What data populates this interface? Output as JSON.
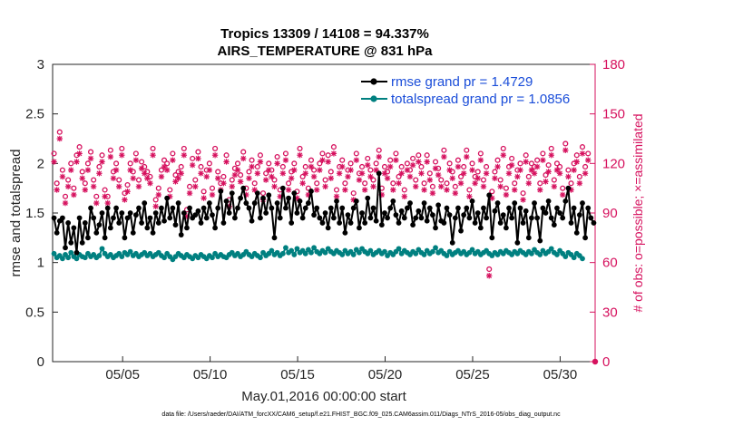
{
  "chart_data": {
    "type": "line",
    "title": "Tropics 13309 / 14108 = 94.337%",
    "subtitle": "AIRS_TEMPERATURE @ 831 hPa",
    "xlabel": "May.01,2016 00:00:00 start",
    "ylabel": "rmse and totalspread",
    "ylabel_right": "# of obs: o=possible; ×=assimilated",
    "x_ticks": [
      {
        "day": 5,
        "label": "05/05"
      },
      {
        "day": 10,
        "label": "05/10"
      },
      {
        "day": 15,
        "label": "05/15"
      },
      {
        "day": 20,
        "label": "05/20"
      },
      {
        "day": 25,
        "label": "05/25"
      },
      {
        "day": 30,
        "label": "05/30"
      }
    ],
    "xlim": [
      1,
      32
    ],
    "ylim": [
      0,
      3
    ],
    "y_ticks": [
      "0",
      "0.5",
      "1",
      "1.5",
      "2",
      "2.5",
      "3"
    ],
    "ylim_right": [
      0,
      180
    ],
    "y_ticks_right": [
      "0",
      "30",
      "60",
      "90",
      "120",
      "150",
      "180"
    ],
    "legend_position": "top-right",
    "colors": {
      "rmse": "#000000",
      "totalspread": "#008080",
      "obs": "#d6115e",
      "axis": "#262626",
      "legend_text": "#1a4dd9"
    },
    "series": [
      {
        "name": "rmse grand pr = 1.4729",
        "axis": "left",
        "values": [
          1.45,
          1.3,
          1.42,
          1.45,
          1.15,
          1.4,
          1.2,
          1.35,
          1.1,
          1.45,
          1.2,
          1.4,
          1.25,
          1.55,
          1.45,
          1.3,
          1.38,
          1.5,
          1.25,
          1.55,
          1.35,
          1.45,
          1.55,
          1.4,
          1.5,
          1.25,
          1.45,
          1.5,
          1.3,
          1.48,
          1.55,
          1.4,
          1.6,
          1.35,
          1.45,
          1.3,
          1.5,
          1.4,
          1.55,
          1.42,
          1.65,
          1.45,
          1.55,
          1.38,
          1.6,
          1.28,
          1.5,
          1.35,
          1.55,
          1.45,
          1.48,
          1.52,
          1.4,
          1.55,
          1.45,
          1.6,
          1.48,
          1.35,
          1.55,
          1.72,
          1.4,
          1.62,
          1.5,
          1.7,
          1.45,
          1.55,
          1.65,
          1.75,
          1.6,
          1.55,
          1.42,
          1.6,
          1.7,
          1.45,
          1.65,
          1.5,
          1.68,
          1.55,
          1.25,
          1.6,
          1.45,
          1.75,
          1.55,
          1.65,
          1.4,
          1.7,
          1.5,
          1.62,
          1.45,
          1.55,
          1.6,
          1.72,
          1.48,
          1.55,
          1.45,
          1.4,
          1.5,
          1.35,
          1.55,
          1.45,
          1.62,
          1.4,
          1.55,
          1.3,
          1.48,
          1.4,
          1.55,
          1.62,
          1.35,
          1.5,
          1.4,
          1.65,
          1.45,
          1.55,
          1.42,
          1.9,
          1.38,
          1.5,
          1.45,
          1.55,
          1.62,
          1.48,
          1.4,
          1.52,
          1.45,
          1.55,
          1.6,
          1.38,
          1.45,
          1.52,
          1.45,
          1.6,
          1.42,
          1.55,
          1.48,
          1.35,
          1.58,
          1.42,
          1.4,
          1.55,
          1.48,
          1.2,
          1.45,
          1.55,
          1.32,
          1.48,
          1.55,
          1.45,
          1.62,
          1.4,
          1.5,
          1.35,
          1.55,
          1.45,
          1.68,
          1.25,
          1.52,
          1.6,
          1.4,
          1.48,
          1.35,
          1.55,
          1.45,
          1.6,
          1.2,
          1.55,
          1.4,
          1.52,
          1.25,
          1.45,
          1.6,
          1.45,
          1.22,
          1.55,
          1.5,
          1.62,
          1.45,
          1.38,
          1.55,
          1.5,
          1.45,
          1.62,
          1.75,
          1.4,
          1.55,
          1.3,
          1.48,
          1.6,
          1.25,
          1.55,
          1.45,
          1.4
        ]
      },
      {
        "name": "totalspread grand pr = 1.0856",
        "axis": "left",
        "values": [
          1.09,
          1.05,
          1.07,
          1.04,
          1.08,
          1.05,
          1.1,
          1.06,
          1.04,
          1.08,
          1.06,
          1.05,
          1.09,
          1.06,
          1.08,
          1.05,
          1.07,
          1.14,
          1.09,
          1.06,
          1.08,
          1.05,
          1.07,
          1.09,
          1.06,
          1.1,
          1.08,
          1.11,
          1.07,
          1.09,
          1.06,
          1.08,
          1.1,
          1.07,
          1.09,
          1.06,
          1.08,
          1.1,
          1.07,
          1.05,
          1.09,
          1.06,
          1.03,
          1.06,
          1.09,
          1.07,
          1.05,
          1.08,
          1.06,
          1.04,
          1.07,
          1.05,
          1.08,
          1.06,
          1.04,
          1.07,
          1.05,
          1.09,
          1.06,
          1.08,
          1.06,
          1.05,
          1.08,
          1.1,
          1.07,
          1.09,
          1.06,
          1.08,
          1.11,
          1.08,
          1.06,
          1.09,
          1.07,
          1.05,
          1.1,
          1.07,
          1.09,
          1.12,
          1.08,
          1.1,
          1.07,
          1.09,
          1.15,
          1.1,
          1.12,
          1.08,
          1.14,
          1.1,
          1.12,
          1.09,
          1.13,
          1.1,
          1.15,
          1.11,
          1.09,
          1.12,
          1.1,
          1.14,
          1.11,
          1.09,
          1.12,
          1.1,
          1.08,
          1.12,
          1.09,
          1.11,
          1.08,
          1.13,
          1.1,
          1.14,
          1.11,
          1.09,
          1.12,
          1.08,
          1.1,
          1.12,
          1.09,
          1.11,
          1.07,
          1.1,
          1.08,
          1.11,
          1.14,
          1.09,
          1.12,
          1.1,
          1.08,
          1.11,
          1.09,
          1.13,
          1.1,
          1.08,
          1.12,
          1.09,
          1.11,
          1.15,
          1.1,
          1.12,
          1.09,
          1.07,
          1.11,
          1.08,
          1.1,
          1.12,
          1.09,
          1.11,
          1.08,
          1.1,
          1.13,
          1.09,
          1.11,
          1.08,
          1.1,
          1.12,
          1.09,
          1.07,
          1.1,
          1.08,
          1.11,
          1.09,
          1.12,
          1.1,
          1.08,
          1.11,
          1.09,
          1.12,
          1.1,
          1.08,
          1.11,
          1.09,
          1.13,
          1.1,
          1.08,
          1.12,
          1.09,
          1.11,
          1.14,
          1.1,
          1.08,
          1.12,
          1.09,
          1.06,
          1.1,
          1.08,
          1.05,
          1.09,
          1.07,
          1.04
        ]
      },
      {
        "name": "# obs possible",
        "axis": "right",
        "marker": "o",
        "values": [
          126,
          108,
          139,
          116,
          100,
          110,
          120,
          105,
          125,
          130,
          115,
          108,
          120,
          127,
          110,
          100,
          118,
          125,
          104,
          100,
          128,
          115,
          120,
          110,
          129,
          102,
          107,
          120,
          115,
          126,
          110,
          121,
          118,
          115,
          112,
          129,
          98,
          105,
          116,
          122,
          120,
          104,
          126,
          113,
          115,
          118,
          129,
          92,
          106,
          123,
          110,
          127,
          118,
          103,
          116,
          120,
          105,
          129,
          115,
          108,
          112,
          125,
          98,
          110,
          117,
          120,
          113,
          127,
          105,
          115,
          122,
          108,
          118,
          125,
          102,
          114,
          120,
          116,
          110,
          124,
          104,
          118,
          126,
          108,
          115,
          120,
          103,
          129,
          112,
          118,
          105,
          122,
          116,
          108,
          120,
          126,
          110,
          125,
          115,
          130,
          104,
          118,
          122,
          108,
          116,
          120,
          102,
          126,
          114,
          118,
          108,
          123,
          116,
          110,
          120,
          128,
          105,
          118,
          115,
          122,
          108,
          126,
          112,
          118,
          104,
          120,
          116,
          123,
          110,
          125,
          118,
          108,
          125,
          114,
          106,
          121,
          117,
          110,
          128,
          108,
          120,
          115,
          106,
          122,
          112,
          118,
          128,
          104,
          120,
          112,
          115,
          126,
          110,
          118,
          56,
          103,
          115,
          122,
          110,
          129,
          105,
          118,
          123,
          108,
          116,
          120,
          102,
          125,
          112,
          120,
          118,
          122,
          108,
          126,
          113,
          119,
          129,
          110,
          120,
          118,
          105,
          132,
          116,
          108,
          120,
          125,
          112,
          130,
          118,
          126
        ]
      },
      {
        "name": "# obs assimilated",
        "axis": "right",
        "marker": "*",
        "values": [
          121,
          104,
          135,
          112,
          96,
          106,
          116,
          101,
          121,
          126,
          111,
          104,
          116,
          123,
          106,
          96,
          114,
          121,
          100,
          96,
          124,
          111,
          116,
          106,
          125,
          98,
          103,
          116,
          111,
          122,
          106,
          117,
          114,
          111,
          108,
          125,
          94,
          101,
          112,
          118,
          116,
          100,
          122,
          109,
          111,
          114,
          125,
          88,
          102,
          119,
          106,
          123,
          114,
          99,
          112,
          116,
          101,
          125,
          111,
          104,
          108,
          121,
          94,
          106,
          113,
          116,
          109,
          123,
          101,
          111,
          118,
          104,
          114,
          121,
          98,
          110,
          116,
          112,
          106,
          120,
          100,
          114,
          122,
          104,
          111,
          116,
          99,
          125,
          108,
          114,
          101,
          118,
          112,
          104,
          116,
          122,
          106,
          121,
          111,
          126,
          100,
          114,
          118,
          104,
          112,
          116,
          98,
          122,
          110,
          114,
          104,
          119,
          112,
          106,
          116,
          124,
          101,
          114,
          111,
          118,
          104,
          122,
          108,
          114,
          100,
          116,
          112,
          119,
          106,
          121,
          114,
          104,
          121,
          110,
          102,
          117,
          113,
          106,
          124,
          104,
          116,
          111,
          102,
          118,
          108,
          114,
          124,
          100,
          116,
          108,
          111,
          122,
          106,
          114,
          52,
          99,
          111,
          118,
          106,
          125,
          101,
          114,
          119,
          104,
          112,
          116,
          98,
          121,
          108,
          116,
          114,
          118,
          104,
          122,
          109,
          115,
          125,
          106,
          116,
          114,
          101,
          128,
          112,
          104,
          116,
          121,
          108,
          126,
          114,
          122
        ]
      }
    ]
  },
  "footnote": "data file: /Users/raeder/DAI/ATM_forcXX/CAM6_setup/f.e21.FHIST_BGC.f09_025.CAM6assim.011/Diags_NTrS_2016-05/obs_diag_output.nc"
}
